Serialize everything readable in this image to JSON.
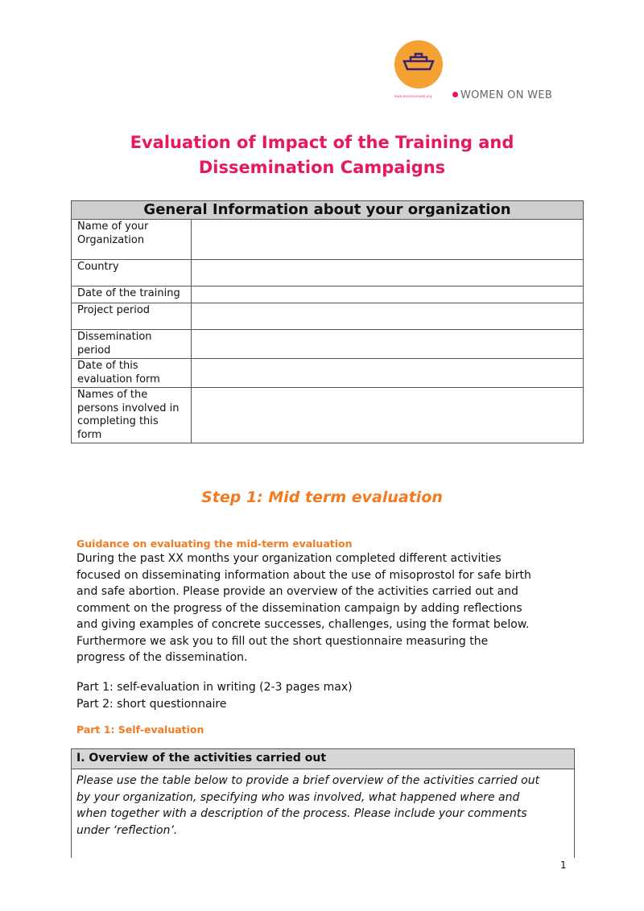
{
  "logo": {
    "url_text": "www.womenonweb.org",
    "brand": "WOMEN ON WEB",
    "colors": {
      "circle": "#f4a232",
      "ship": "#3a1f7a",
      "accent": "#e6194f"
    }
  },
  "title": [
    "Evaluation of Impact of the Training and",
    "Dissemination Campaigns"
  ],
  "general_info": {
    "header": "General Information about your organization",
    "rows": [
      [
        "Name of your",
        "Organization"
      ],
      [
        "Country"
      ],
      [
        "Date of the training"
      ],
      [
        "Project period"
      ],
      [
        "Dissemination",
        "period"
      ],
      [
        "Date of this",
        "evaluation form"
      ],
      [
        "Names of the",
        "persons involved in",
        "completing this",
        "form"
      ]
    ]
  },
  "step1": "Step 1: Mid term evaluation",
  "guidance_heading": "Guidance on evaluating the mid-term evaluation",
  "guidance_lines": [
    "During the past XX months your organization completed different activities",
    "focused on disseminating information about the use of misoprostol for safe birth",
    "and safe abortion. Please provide an overview of the activities carried out and",
    "comment on the progress of the dissemination campaign by adding reflections",
    "and giving examples of concrete successes, challenges, using the format below.",
    "Furthermore we ask you to fill out the short questionnaire measuring the",
    "progress of the dissemination."
  ],
  "parts": [
    "Part 1: self-evaluation in writing (2-3 pages max)",
    "Part 2: short questionnaire"
  ],
  "part1_heading": "Part 1: Self-evaluation",
  "overview": {
    "header": "I. Overview of the activities carried out",
    "lines": [
      "Please use the table below to provide a brief overview of the activities carried out",
      "by your organization, specifying who was involved, what happened where and",
      "when together with a description of the process. Please include your comments",
      "under ‘reflection’."
    ]
  },
  "page_number": "1"
}
